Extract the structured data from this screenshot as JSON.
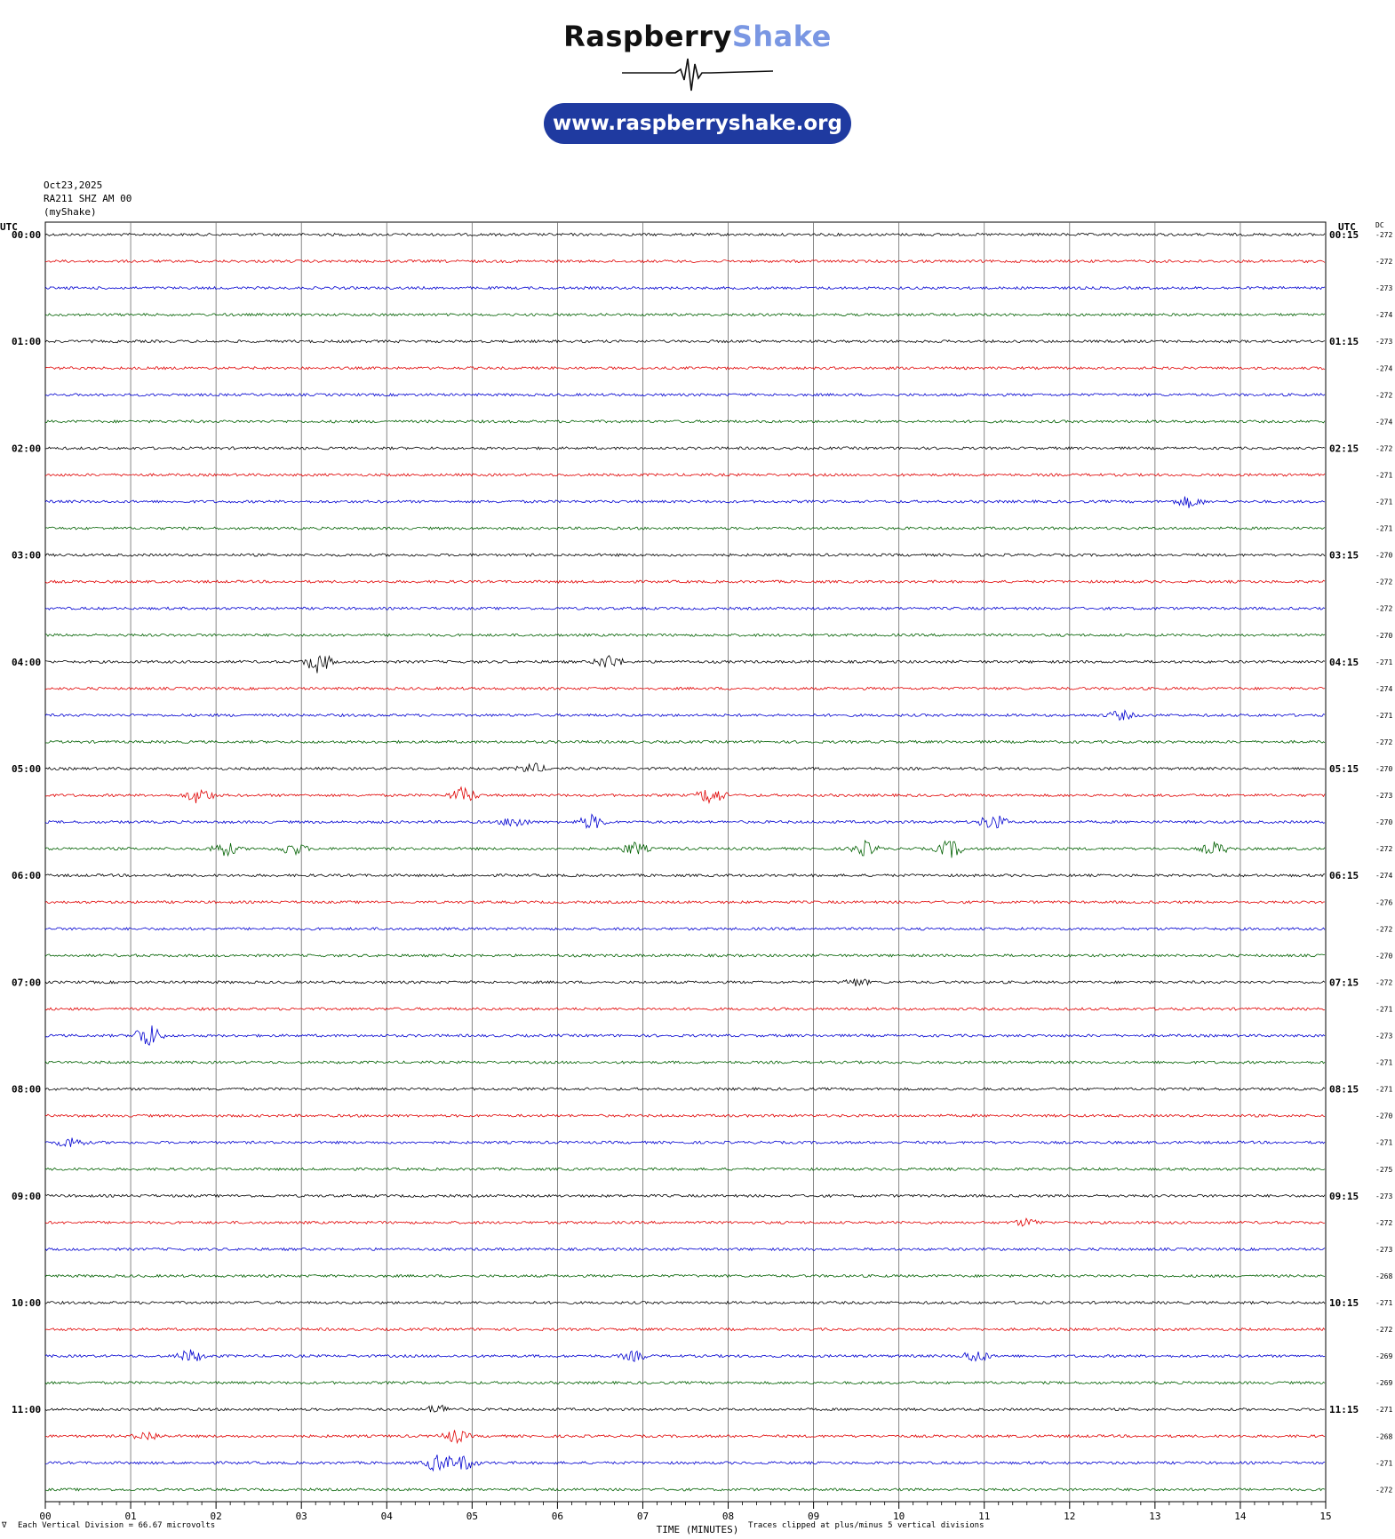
{
  "logo": {
    "brand_part1": "Raspberry",
    "brand_part2": "Shake",
    "url": "www.raspberryshake.org"
  },
  "header": {
    "date": "Oct23,2025",
    "station": "RA211 SHZ AM 00",
    "network": "(myShake)"
  },
  "colors": {
    "line_colors": [
      "#000000",
      "#e00000",
      "#0000d0",
      "#006000"
    ],
    "grid": "#555555",
    "brand_blue": "#1f3aa0",
    "brand_light": "#7a97e3"
  },
  "chart_data": {
    "type": "line",
    "title": "",
    "xlabel": "TIME (MINUTES)",
    "left_axis_title": "UTC",
    "right_axis_title": "UTC",
    "dc_title": "DC",
    "x_ticks": [
      "00",
      "01",
      "02",
      "03",
      "04",
      "05",
      "06",
      "07",
      "08",
      "09",
      "10",
      "11",
      "12",
      "13",
      "14",
      "15"
    ],
    "xlim": [
      0,
      15
    ],
    "left_labels": [
      "00:00",
      "01:00",
      "02:00",
      "03:00",
      "04:00",
      "05:00",
      "06:00",
      "07:00",
      "08:00",
      "09:00",
      "10:00",
      "11:00"
    ],
    "right_labels": [
      "00:15",
      "01:15",
      "02:15",
      "03:15",
      "04:15",
      "05:15",
      "06:15",
      "07:15",
      "08:15",
      "09:15",
      "10:15",
      "11:15"
    ],
    "dc_offsets": [
      "-272",
      "-272",
      "-273",
      "-274",
      "-273",
      "-274",
      "-272",
      "-274",
      "-272",
      "-271",
      "-271",
      "-271",
      "-270",
      "-272",
      "-272",
      "-270",
      "-271",
      "-274",
      "-271",
      "-272",
      "-270",
      "-273",
      "-270",
      "-272",
      "-274",
      "-276",
      "-272",
      "-270",
      "-272",
      "-271",
      "-273",
      "-271",
      "-271",
      "-270",
      "-271",
      "-275",
      "-273",
      "-272",
      "-273",
      "-268",
      "-271",
      "-272",
      "-269",
      "-269",
      "-271",
      "-268",
      "-271",
      "-272"
    ],
    "trace_count": 48,
    "minutes_per_trace": 15,
    "events": [
      {
        "trace": 10,
        "minute": 13.4,
        "amp": 6
      },
      {
        "trace": 16,
        "minute": 3.2,
        "amp": 12
      },
      {
        "trace": 16,
        "minute": 6.6,
        "amp": 8
      },
      {
        "trace": 18,
        "minute": 12.6,
        "amp": 5
      },
      {
        "trace": 20,
        "minute": 5.7,
        "amp": 6
      },
      {
        "trace": 21,
        "minute": 1.8,
        "amp": 9
      },
      {
        "trace": 21,
        "minute": 4.9,
        "amp": 9
      },
      {
        "trace": 21,
        "minute": 7.8,
        "amp": 10
      },
      {
        "trace": 22,
        "minute": 5.5,
        "amp": 6
      },
      {
        "trace": 22,
        "minute": 6.4,
        "amp": 8
      },
      {
        "trace": 22,
        "minute": 11.1,
        "amp": 9
      },
      {
        "trace": 23,
        "minute": 2.1,
        "amp": 8
      },
      {
        "trace": 23,
        "minute": 2.9,
        "amp": 7
      },
      {
        "trace": 23,
        "minute": 6.9,
        "amp": 7
      },
      {
        "trace": 23,
        "minute": 9.6,
        "amp": 8
      },
      {
        "trace": 23,
        "minute": 10.6,
        "amp": 10
      },
      {
        "trace": 23,
        "minute": 13.7,
        "amp": 7
      },
      {
        "trace": 28,
        "minute": 9.5,
        "amp": 4
      },
      {
        "trace": 30,
        "minute": 1.2,
        "amp": 14
      },
      {
        "trace": 34,
        "minute": 0.3,
        "amp": 6
      },
      {
        "trace": 37,
        "minute": 11.5,
        "amp": 4
      },
      {
        "trace": 42,
        "minute": 1.7,
        "amp": 7
      },
      {
        "trace": 42,
        "minute": 6.9,
        "amp": 5
      },
      {
        "trace": 42,
        "minute": 10.9,
        "amp": 7
      },
      {
        "trace": 44,
        "minute": 4.6,
        "amp": 5
      },
      {
        "trace": 45,
        "minute": 1.2,
        "amp": 5
      },
      {
        "trace": 45,
        "minute": 4.8,
        "amp": 7
      },
      {
        "trace": 46,
        "minute": 4.6,
        "amp": 10
      },
      {
        "trace": 46,
        "minute": 4.9,
        "amp": 8
      }
    ]
  },
  "footer": {
    "scale": "Each Vertical Division =   66.67 microvolts",
    "clip": "Traces clipped at plus/minus 5 vertical divisions",
    "corner": "∇"
  }
}
